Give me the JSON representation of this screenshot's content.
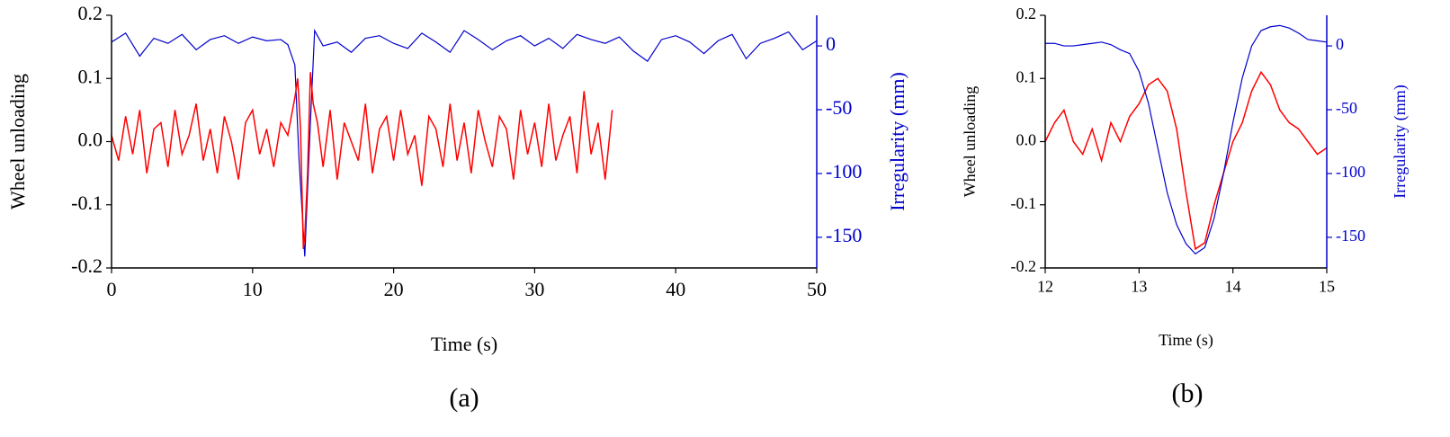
{
  "chart_data": [
    {
      "type": "line",
      "caption": "(a)",
      "xlabel": "Time (s)",
      "ylabel": "Wheel unloading",
      "y2label": "Irregularity (mm)",
      "xlim": [
        0,
        50
      ],
      "xticks": [
        0,
        10,
        20,
        30,
        40,
        50
      ],
      "ylim": [
        -0.2,
        0.2
      ],
      "yticks": [
        -0.2,
        -0.1,
        {
          "value": 0,
          "label": "0.0"
        },
        0.1,
        0.2
      ],
      "y2lim": [
        -174,
        24
      ],
      "y2ticks": [
        -150,
        -100,
        -50,
        0
      ],
      "series": [
        {
          "color": "#0000cc",
          "axis": "y2",
          "x": [
            0,
            1,
            2,
            3,
            4,
            5,
            6,
            7,
            8,
            9,
            10,
            11,
            12,
            12.5,
            13,
            13.3,
            13.7,
            14.1,
            14.4,
            15,
            16,
            17,
            18,
            19,
            20,
            21,
            22,
            23,
            24,
            25,
            26,
            27,
            28,
            29,
            30,
            31,
            32,
            33,
            34,
            35,
            36,
            37,
            38,
            39,
            40,
            41,
            42,
            43,
            44,
            45,
            46,
            47,
            48,
            49,
            50
          ],
          "values": [
            3,
            10,
            -8,
            6,
            2,
            9,
            -3,
            5,
            8,
            2,
            7,
            4,
            5,
            1,
            -15,
            -90,
            -165,
            -60,
            12,
            0,
            3,
            -5,
            6,
            8,
            2,
            -2,
            10,
            3,
            -5,
            12,
            5,
            -3,
            4,
            8,
            0,
            6,
            -2,
            9,
            5,
            2,
            7,
            -4,
            -12,
            5,
            8,
            3,
            -6,
            4,
            9,
            -10,
            2,
            6,
            11,
            -3,
            4
          ]
        },
        {
          "color": "#ff0000",
          "x": [
            0,
            0.5,
            1,
            1.5,
            2,
            2.5,
            3,
            3.5,
            4,
            4.5,
            5,
            5.5,
            6,
            6.5,
            7,
            7.5,
            8,
            8.5,
            9,
            9.5,
            10,
            10.5,
            11,
            11.5,
            12,
            12.5,
            13,
            13.2,
            13.4,
            13.6,
            13.7,
            13.9,
            14.1,
            14.3,
            14.6,
            15,
            15.5,
            16,
            16.5,
            17,
            17.5,
            18,
            18.5,
            19,
            19.5,
            20,
            20.5,
            21,
            21.5,
            22,
            22.5,
            23,
            23.5,
            24,
            24.5,
            25,
            25.5,
            26,
            26.5,
            27,
            27.5,
            28,
            28.5,
            29,
            29.5,
            30,
            30.5,
            31,
            31.5,
            32,
            32.5,
            33,
            33.5,
            34,
            34.5,
            35,
            35.5
          ],
          "values": [
            0.01,
            -0.03,
            0.04,
            -0.02,
            0.05,
            -0.05,
            0.02,
            0.03,
            -0.04,
            0.05,
            -0.02,
            0.01,
            0.06,
            -0.03,
            0.02,
            -0.05,
            0.04,
            0.0,
            -0.06,
            0.03,
            0.05,
            -0.02,
            0.02,
            -0.04,
            0.03,
            0.01,
            0.07,
            0.1,
            0.02,
            -0.17,
            -0.15,
            -0.05,
            0.11,
            0.06,
            0.03,
            -0.04,
            0.05,
            -0.06,
            0.03,
            0.0,
            -0.03,
            0.06,
            -0.05,
            0.02,
            0.04,
            -0.03,
            0.05,
            -0.02,
            0.01,
            -0.07,
            0.04,
            0.02,
            -0.04,
            0.06,
            -0.03,
            0.03,
            -0.05,
            0.05,
            0.0,
            -0.04,
            0.04,
            0.02,
            -0.06,
            0.05,
            -0.02,
            0.03,
            -0.04,
            0.06,
            -0.03,
            0.01,
            0.04,
            -0.05,
            0.08,
            -0.02,
            0.03,
            -0.06,
            0.05
          ]
        }
      ]
    },
    {
      "type": "line",
      "caption": "(b)",
      "xlabel": "Time (s)",
      "ylabel": "Wheel unloading",
      "y2label": "Irregularity (mm)",
      "xlim": [
        12,
        15
      ],
      "xticks": [
        12,
        13,
        14,
        15
      ],
      "ylim": [
        -0.2,
        0.2
      ],
      "yticks": [
        -0.2,
        -0.1,
        {
          "value": 0,
          "label": "0.0"
        },
        0.1,
        0.2
      ],
      "y2lim": [
        -174,
        24
      ],
      "y2ticks": [
        -150,
        -100,
        -50,
        0
      ],
      "series": [
        {
          "color": "#ff0000",
          "x": [
            12,
            12.1,
            12.2,
            12.3,
            12.4,
            12.5,
            12.6,
            12.7,
            12.8,
            12.9,
            13,
            13.1,
            13.2,
            13.3,
            13.4,
            13.5,
            13.6,
            13.7,
            13.8,
            13.9,
            14,
            14.1,
            14.2,
            14.3,
            14.4,
            14.5,
            14.6,
            14.7,
            14.8,
            14.9,
            15
          ],
          "values": [
            0.0,
            0.03,
            0.05,
            0.0,
            -0.02,
            0.02,
            -0.03,
            0.03,
            0.0,
            0.04,
            0.06,
            0.09,
            0.1,
            0.08,
            0.02,
            -0.08,
            -0.17,
            -0.16,
            -0.1,
            -0.05,
            0.0,
            0.03,
            0.08,
            0.11,
            0.09,
            0.05,
            0.03,
            0.02,
            0.0,
            -0.02,
            -0.01
          ]
        },
        {
          "color": "#0000cc",
          "axis": "y2",
          "x": [
            12,
            12.1,
            12.2,
            12.3,
            12.4,
            12.5,
            12.6,
            12.7,
            12.8,
            12.9,
            13,
            13.1,
            13.2,
            13.3,
            13.4,
            13.5,
            13.6,
            13.7,
            13.8,
            13.9,
            14,
            14.1,
            14.2,
            14.3,
            14.4,
            14.5,
            14.6,
            14.7,
            14.8,
            14.9,
            15
          ],
          "values": [
            2,
            2,
            0,
            0,
            1,
            2,
            3,
            1,
            -3,
            -6,
            -20,
            -45,
            -80,
            -115,
            -140,
            -155,
            -163,
            -158,
            -135,
            -100,
            -60,
            -25,
            0,
            12,
            15,
            16,
            14,
            10,
            5,
            4,
            3
          ]
        }
      ]
    }
  ]
}
